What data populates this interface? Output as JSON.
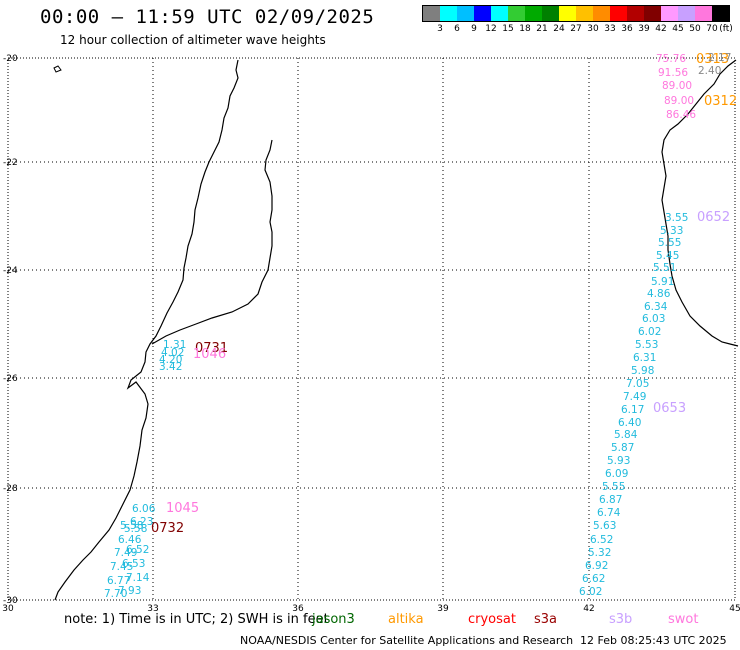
{
  "title": "00:00 – 11:59 UTC 02/09/2025",
  "subtitle": "12 hour collection of altimeter wave heights",
  "legend": {
    "unit": "(ft)",
    "colors": [
      "#7f7f7f",
      "#00ffff",
      "#00bfff",
      "#0000ff",
      "#00ffff",
      "#33cc33",
      "#00aa00",
      "#008000",
      "#ffff00",
      "#ffc000",
      "#ff8c00",
      "#ff0000",
      "#b20000",
      "#800000",
      "#ff99ff",
      "#c8a0ff",
      "#ff77dd",
      "#000000"
    ],
    "labels": [
      "3",
      "6",
      "9",
      "12",
      "15",
      "18",
      "21",
      "24",
      "27",
      "30",
      "33",
      "36",
      "39",
      "42",
      "45",
      "50",
      "70"
    ]
  },
  "axes": {
    "lon_labels": [
      "30",
      "33",
      "36",
      "39",
      "42",
      "45"
    ],
    "lat_labels": [
      "-20",
      "-22",
      "-24",
      "-26",
      "-28",
      "-30"
    ]
  },
  "map_data": {
    "colors": {
      "jason3": "#22bbdd",
      "altika": "#ff9900",
      "cryosat": "#ff0000",
      "s3a": "#800000",
      "s3b": "#c8a0ff",
      "swot": "#ff77dd",
      "dark": "#800000"
    },
    "passes": [
      {
        "label": "0731",
        "color": "dark",
        "values": [
          "1.31",
          "4.02",
          "4.20",
          "3.42"
        ],
        "valcolor": "jason3"
      },
      {
        "label": "1046",
        "color": "swot",
        "values": [],
        "valcolor": "swot"
      },
      {
        "label": "1045",
        "color": "swot",
        "values": [
          "6.06",
          "6.23",
          "5.58",
          "5.58",
          "6.46",
          "6.52",
          "7.49",
          "6.53",
          "7.45",
          "7.14",
          "6.77",
          "7.93",
          "7.70"
        ],
        "valcolor": "jason3"
      },
      {
        "label": "0732",
        "color": "dark",
        "values": [],
        "valcolor": "jason3"
      },
      {
        "label": "0313",
        "color": "altika",
        "values": [
          "75.76",
          "91.56",
          "89.00",
          "89.00",
          "86.46"
        ],
        "valcolor": "swot"
      },
      {
        "label": "0312",
        "color": "altika",
        "values": [],
        "valcolor": "swot"
      },
      {
        "label": "0652",
        "color": "s3b",
        "values": [
          "3.55",
          "5.33",
          "5.55",
          "5.45",
          "5.51",
          "5.91",
          "4.86",
          "6.34",
          "6.03",
          "6.02",
          "5.53",
          "6.31",
          "5.98",
          "7.05",
          "7.49",
          "6.17",
          "6.40",
          "5.84",
          "5.87",
          "5.93",
          "6.09",
          "5.55",
          "6.87",
          "6.74",
          "5.63",
          "6.52",
          "5.32",
          "6.92",
          "6.62",
          "6.02"
        ],
        "valcolor": "jason3"
      },
      {
        "label": "0653",
        "color": "s3b",
        "values": [],
        "valcolor": "jason3"
      }
    ],
    "extra_values": [
      {
        "text": "2.40",
        "color": "#888888"
      },
      {
        "text": "2.17",
        "color": "#888888"
      }
    ]
  },
  "footnote": "note: 1) Time is in UTC; 2) SWH is in feet",
  "satellites": [
    {
      "name": "jason3",
      "color": "#006600"
    },
    {
      "name": "altika",
      "color": "#ff9900"
    },
    {
      "name": "cryosat",
      "color": "#ff0000"
    },
    {
      "name": "s3a",
      "color": "#990000"
    },
    {
      "name": "s3b",
      "color": "#c8a0ff"
    },
    {
      "name": "swot",
      "color": "#ff77dd"
    }
  ],
  "credit": "NOAA/NESDIS Center for Satellite Applications and Research",
  "stamp": "12 Feb 08:25:43 UTC 2025"
}
